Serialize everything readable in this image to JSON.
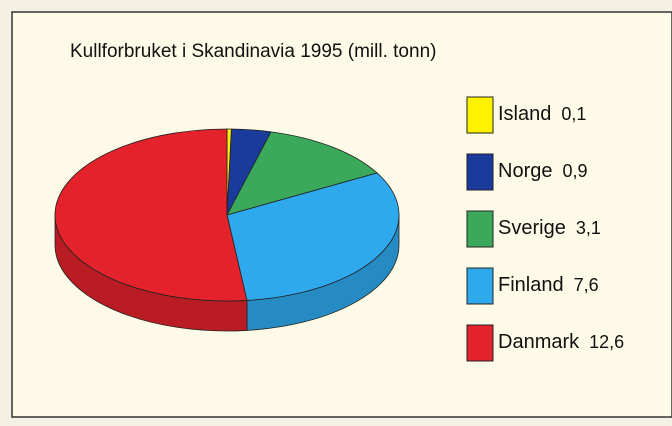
{
  "chart_data": {
    "type": "pie",
    "title": "Kullforbruket i Skandinavia 1995 (mill. tonn)",
    "categories": [
      "Island",
      "Norge",
      "Sverige",
      "Finland",
      "Danmark"
    ],
    "values": [
      0.1,
      0.9,
      3.1,
      7.6,
      12.6
    ],
    "value_labels": [
      "0,1",
      "0,9",
      "3,1",
      "7,6",
      "12,6"
    ],
    "colors": [
      "#fff200",
      "#1b3b9c",
      "#3aa95c",
      "#2ea9ee",
      "#e3222b"
    ],
    "legend": "right"
  }
}
